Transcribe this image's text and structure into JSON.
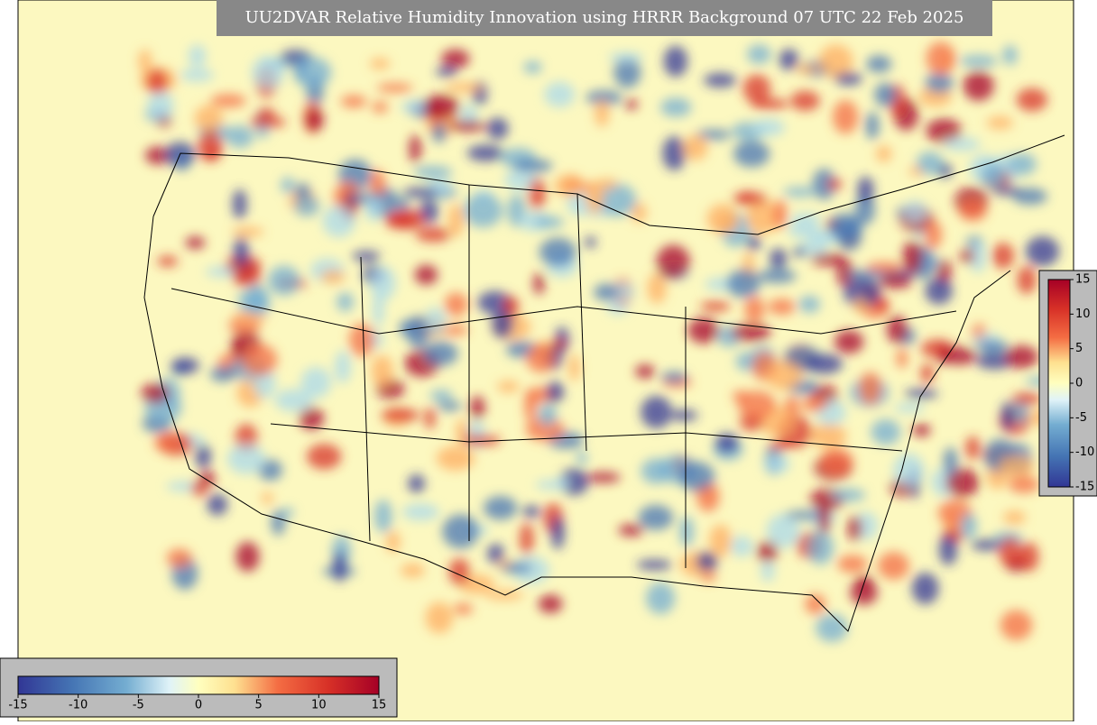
{
  "title": "UU2DVAR Relative Humidity Innovation using HRRR Background 07 UTC 22 Feb 2025",
  "colorbars": [
    {
      "orientation": "horizontal",
      "lim": [
        -15,
        15
      ],
      "ticks": [
        -15,
        -10,
        -5,
        0,
        5,
        10,
        15
      ]
    },
    {
      "orientation": "vertical",
      "lim": [
        -15,
        15
      ],
      "ticks": [
        -15,
        -10,
        -5,
        0,
        5,
        10,
        15
      ]
    }
  ]
}
